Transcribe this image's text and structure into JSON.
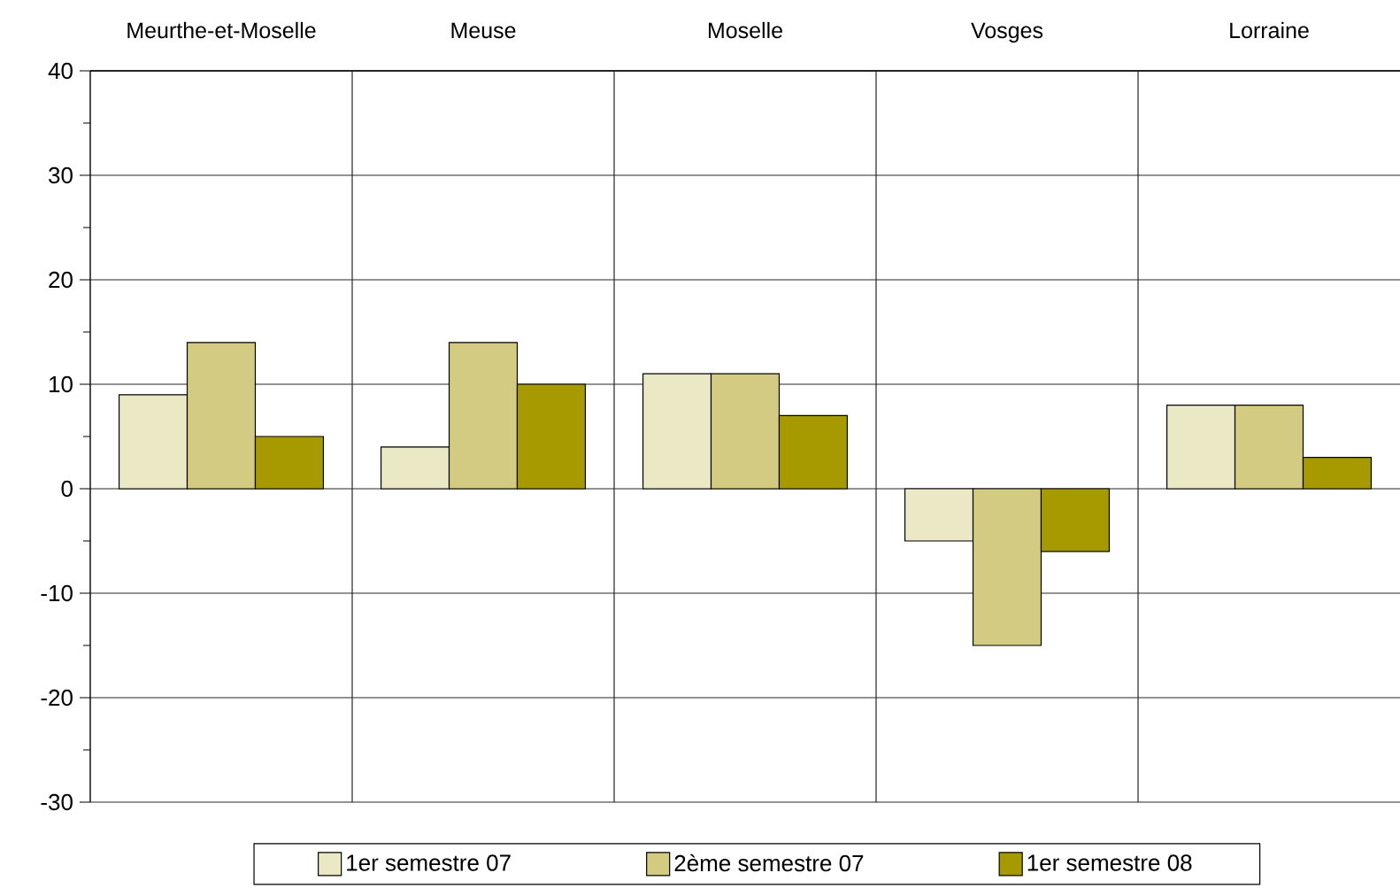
{
  "chart_data": {
    "type": "bar",
    "categories": [
      "Meurthe-et-Moselle",
      "Meuse",
      "Moselle",
      "Vosges",
      "Lorraine"
    ],
    "series": [
      {
        "name": "1er semestre 07",
        "color": "#ebe8c6",
        "values": [
          9,
          4,
          11,
          -5,
          8
        ]
      },
      {
        "name": "2ème semestre 07",
        "color": "#d3cb82",
        "values": [
          14,
          14,
          11,
          -15,
          8
        ]
      },
      {
        "name": "1er semestre 08",
        "color": "#a69a00",
        "values": [
          5,
          10,
          7,
          -6,
          3
        ]
      }
    ],
    "ylim": [
      -30,
      40
    ],
    "yticks": [
      -30,
      -20,
      -10,
      0,
      10,
      20,
      30,
      40
    ],
    "grid": true,
    "legend": "bottom"
  }
}
